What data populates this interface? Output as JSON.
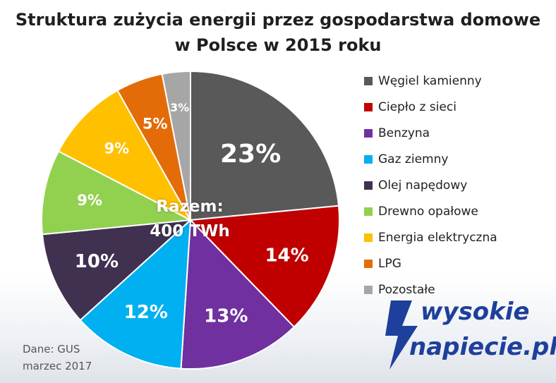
{
  "title": {
    "line1": "Struktura zużycia energii przez gospodarstwa domowe",
    "line2": "w Polsce w 2015 roku"
  },
  "chart_data": {
    "type": "pie",
    "title": "Struktura zużycia energii przez gospodarstwa domowe w Polsce w 2015 roku",
    "slices": [
      {
        "label": "Węgiel kamienny",
        "value": 23,
        "value_label": "23%",
        "color": "#595959"
      },
      {
        "label": "Ciepło z sieci",
        "value": 14,
        "value_label": "14%",
        "color": "#c00000"
      },
      {
        "label": "Benzyna",
        "value": 13,
        "value_label": "13%",
        "color": "#7030a0"
      },
      {
        "label": "Gaz ziemny",
        "value": 12,
        "value_label": "12%",
        "color": "#00b0f0"
      },
      {
        "label": "Olej napędowy",
        "value": 10,
        "value_label": "10%",
        "color": "#403151"
      },
      {
        "label": "Drewno opałowe",
        "value": 9,
        "value_label": "9%",
        "color": "#92d050"
      },
      {
        "label": "Energia elektryczna",
        "value": 9,
        "value_label": "9%",
        "color": "#ffc000"
      },
      {
        "label": "LPG",
        "value": 5,
        "value_label": "5%",
        "color": "#e36c09"
      },
      {
        "label": "Pozostałe",
        "value": 3,
        "value_label": "3%",
        "color": "#a6a6a6"
      }
    ],
    "legend_position": "right",
    "start_angle": "top, clockwise"
  },
  "total": {
    "line1": "Razem:",
    "line2": "400 TWh"
  },
  "source": {
    "line1": "Dane: GUS",
    "line2": "marzec 2017"
  },
  "logo": {
    "line1": "wysokie",
    "line2": "napiecie.pl",
    "color": "#1e3f9b"
  }
}
